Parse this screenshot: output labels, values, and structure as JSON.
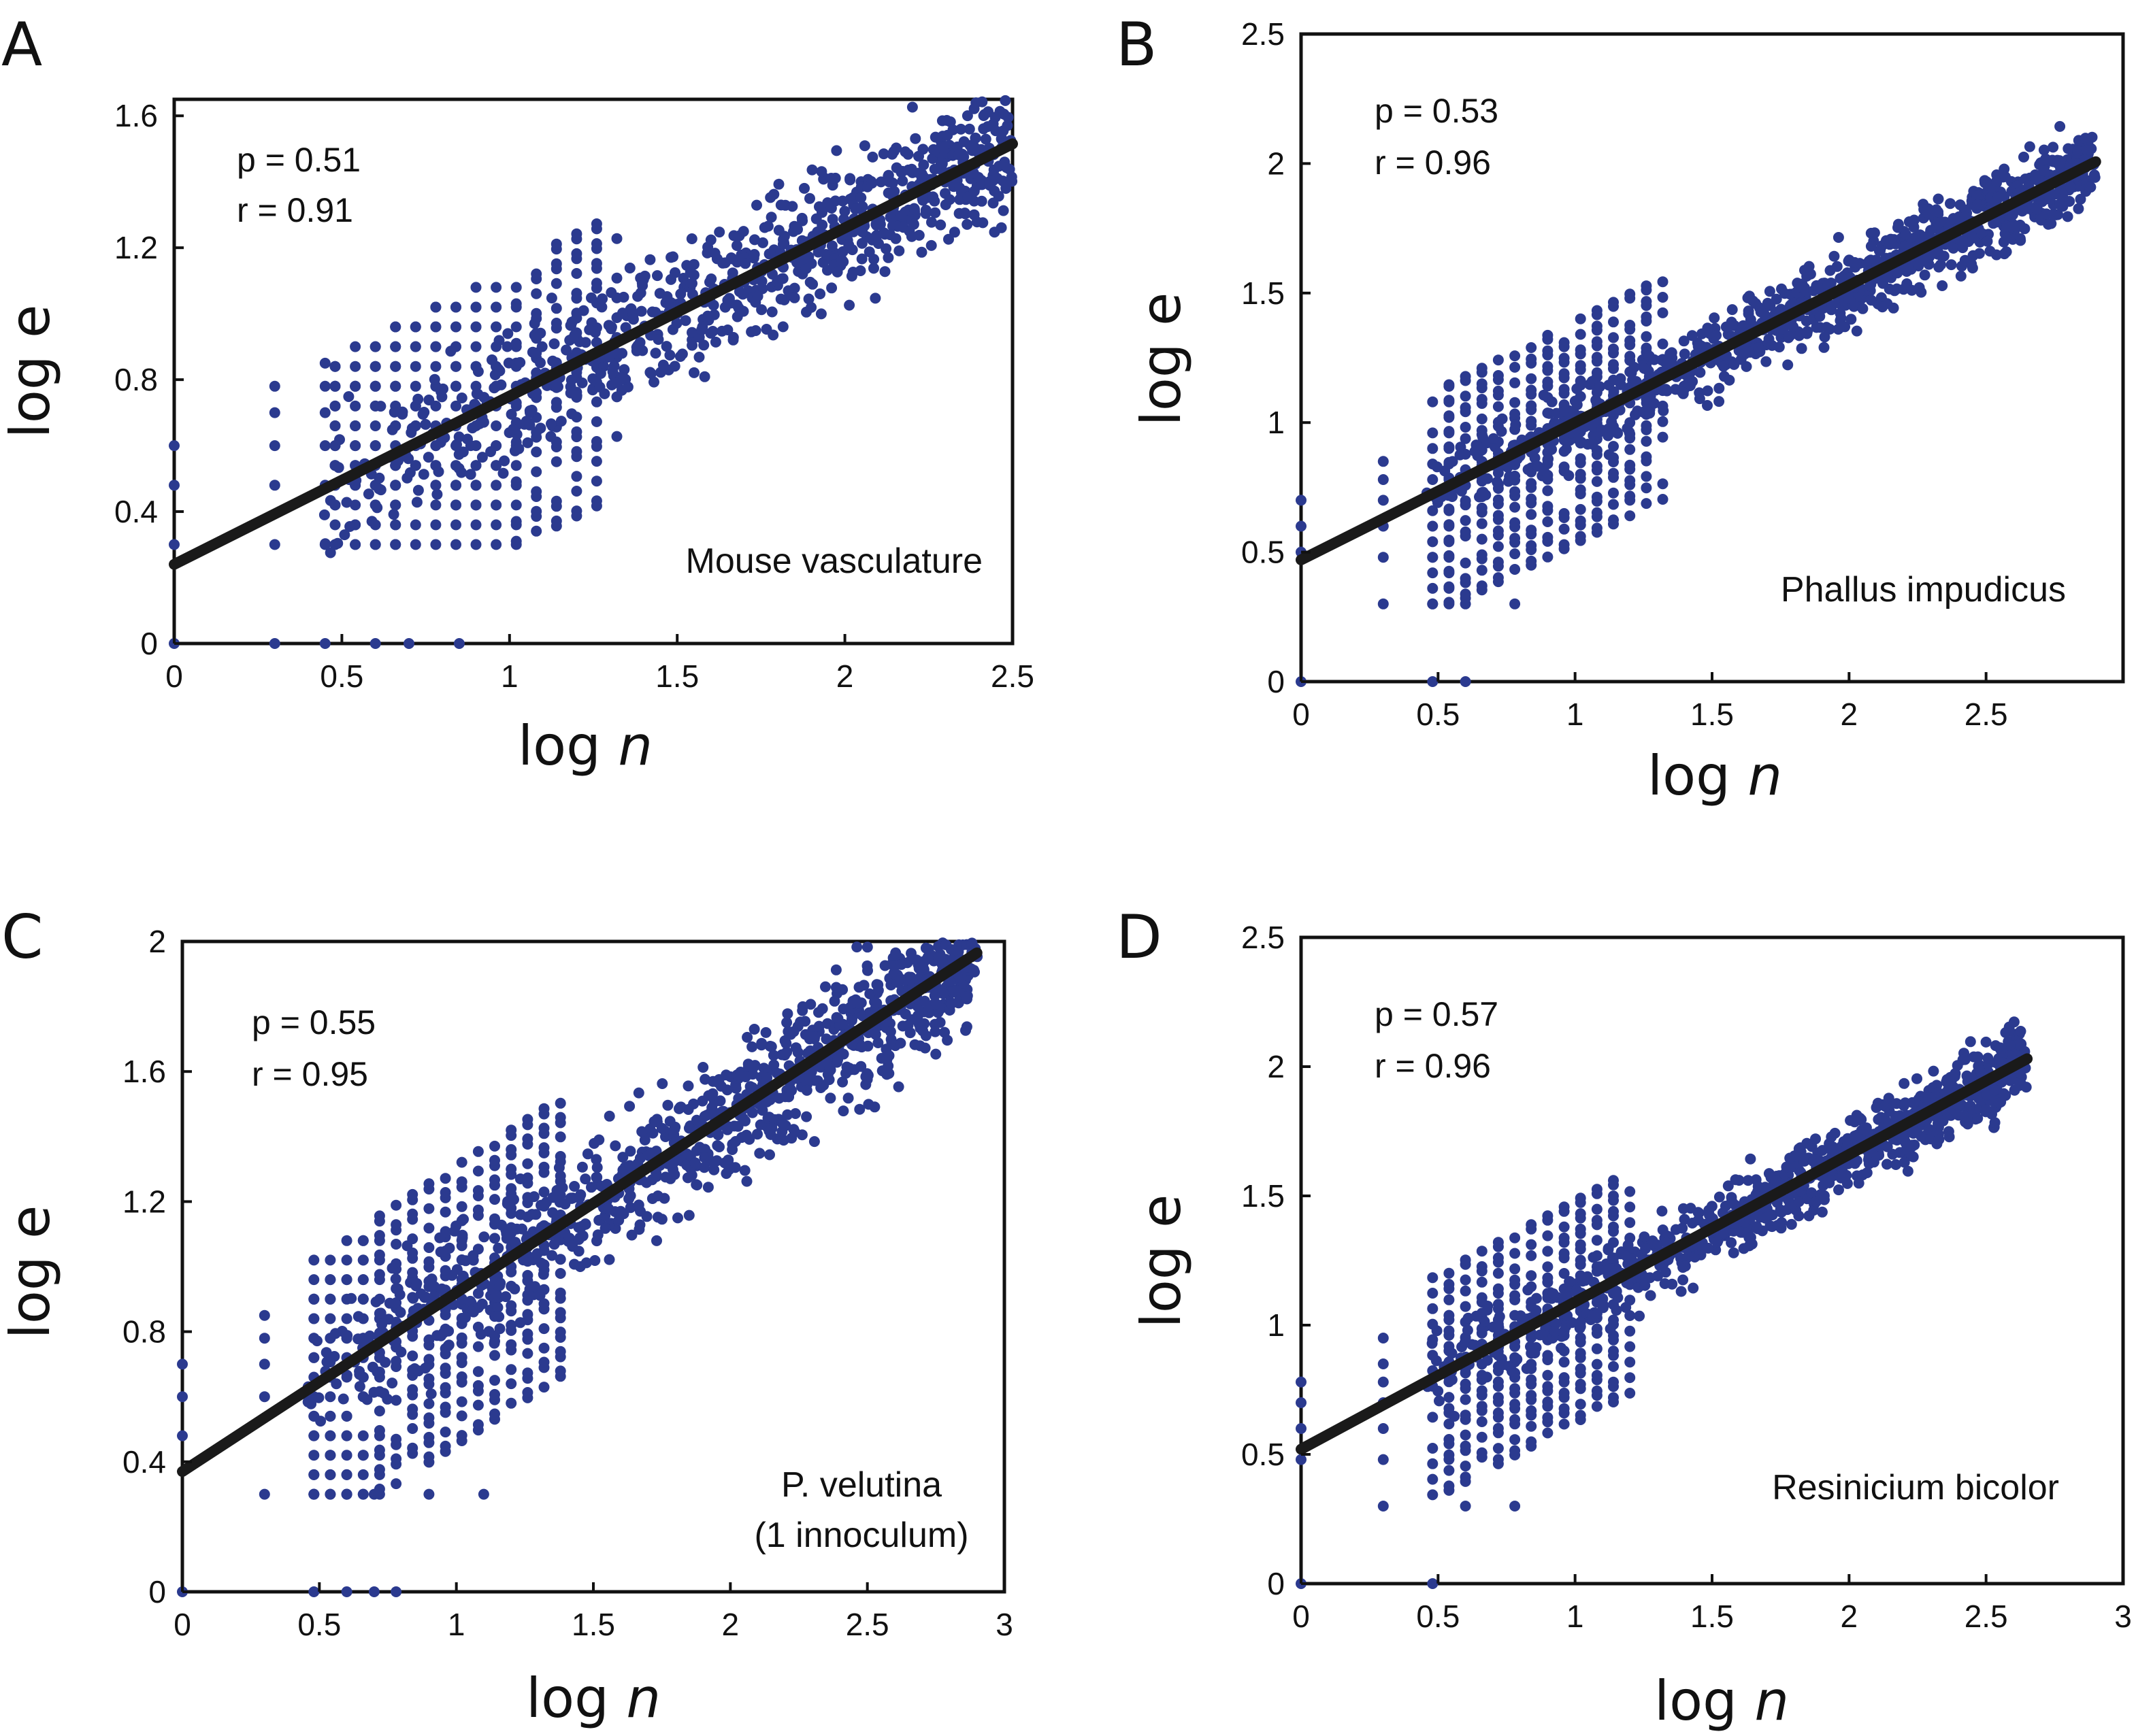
{
  "figure": {
    "colors": {
      "points": "#2b3a8f",
      "fit_line": "#1a1a1a",
      "axes": "#111111"
    }
  },
  "chart_data": [
    {
      "panel": "A",
      "type": "scatter",
      "title": "",
      "xlabel_main": "log ",
      "xlabel_var": "n",
      "ylabel": "log e",
      "xlim": [
        0,
        2.5
      ],
      "ylim": [
        0,
        1.65
      ],
      "xticks": [
        0,
        0.5,
        1,
        1.5,
        2,
        2.5
      ],
      "xtick_labels": [
        "0",
        "0.5",
        "1",
        "1.5",
        "2",
        "2.5"
      ],
      "yticks": [
        0,
        0.4,
        0.8,
        1.2,
        1.6
      ],
      "ytick_labels": [
        "0",
        "0.4",
        "0.8",
        "1.2",
        "1.6"
      ],
      "annotation_p": "p = 0.51",
      "annotation_r": "r =  0.91",
      "name_lines": [
        "Mouse vasculature"
      ],
      "fit": {
        "slope": 0.51,
        "intercept": 0.24,
        "x_end": 2.5
      },
      "grid_points": [
        [
          0,
          0
        ],
        [
          0,
          0.3
        ],
        [
          0,
          0.48
        ],
        [
          0,
          0.6
        ],
        [
          0.3,
          0
        ],
        [
          0.3,
          0.3
        ],
        [
          0.3,
          0.48
        ],
        [
          0.3,
          0.6
        ],
        [
          0.3,
          0.7
        ],
        [
          0.3,
          0.78
        ],
        [
          0.45,
          0
        ],
        [
          0.45,
          0.3
        ],
        [
          0.45,
          0.48
        ],
        [
          0.45,
          0.6
        ],
        [
          0.45,
          0.7
        ],
        [
          0.45,
          0.78
        ],
        [
          0.45,
          0.85
        ],
        [
          0.6,
          0
        ],
        [
          0.7,
          0
        ],
        [
          0.85,
          0
        ]
      ],
      "cloud": {
        "x_min": 0.45,
        "x_max": 2.5,
        "grid_x_max": 1.3,
        "spread": 0.2
      }
    },
    {
      "panel": "B",
      "type": "scatter",
      "title": "",
      "xlabel_main": "log ",
      "xlabel_var": "n",
      "ylabel": "log e",
      "xlim": [
        0,
        3
      ],
      "ylim": [
        0,
        2.5
      ],
      "xticks": [
        0,
        0.5,
        1,
        1.5,
        2,
        2.5
      ],
      "xtick_labels": [
        "0",
        "0.5",
        "1",
        "1.5",
        "2",
        "2.5"
      ],
      "yticks": [
        0,
        0.5,
        1,
        1.5,
        2,
        2.5
      ],
      "ytick_labels": [
        "0",
        "0.5",
        "1",
        "1.5",
        "2",
        "2.5"
      ],
      "annotation_p": "p = 0.53",
      "annotation_r": "r =  0.96",
      "name_lines": [
        "Phallus impudicus"
      ],
      "fit": {
        "slope": 0.53,
        "intercept": 0.47,
        "x_end": 2.9
      },
      "grid_points": [
        [
          0,
          0
        ],
        [
          0,
          0.5
        ],
        [
          0,
          0.6
        ],
        [
          0,
          0.7
        ],
        [
          0.3,
          0.3
        ],
        [
          0.3,
          0.48
        ],
        [
          0.3,
          0.6
        ],
        [
          0.3,
          0.7
        ],
        [
          0.3,
          0.78
        ],
        [
          0.3,
          0.85
        ],
        [
          0.48,
          0
        ],
        [
          0.48,
          0.3
        ],
        [
          0.48,
          0.48
        ],
        [
          0.6,
          0
        ],
        [
          0.6,
          0.3
        ],
        [
          0.78,
          0.3
        ]
      ],
      "cloud": {
        "x_min": 0.48,
        "x_max": 2.9,
        "grid_x_max": 1.3,
        "spread": 0.15
      }
    },
    {
      "panel": "C",
      "type": "scatter",
      "title": "",
      "xlabel_main": "log ",
      "xlabel_var": "n",
      "ylabel": "log e",
      "xlim": [
        0,
        3
      ],
      "ylim": [
        0,
        2
      ],
      "xticks": [
        0,
        0.5,
        1,
        1.5,
        2,
        2.5,
        3
      ],
      "xtick_labels": [
        "0",
        "0.5",
        "1",
        "1.5",
        "2",
        "2.5",
        "3"
      ],
      "yticks": [
        0,
        0.4,
        0.8,
        1.2,
        1.6,
        2
      ],
      "ytick_labels": [
        "0",
        "0.4",
        "0.8",
        "1.2",
        "1.6",
        "2"
      ],
      "annotation_p": "p = 0.55",
      "annotation_r": "r =  0.95",
      "name_lines": [
        "P. velutina",
        "(1 innoculum)"
      ],
      "fit": {
        "slope": 0.55,
        "intercept": 0.37,
        "x_end": 2.9
      },
      "grid_points": [
        [
          0,
          0
        ],
        [
          0,
          0.48
        ],
        [
          0,
          0.6
        ],
        [
          0,
          0.7
        ],
        [
          0.3,
          0.3
        ],
        [
          0.3,
          0.6
        ],
        [
          0.3,
          0.7
        ],
        [
          0.3,
          0.78
        ],
        [
          0.3,
          0.85
        ],
        [
          0.48,
          0
        ],
        [
          0.48,
          0.3
        ],
        [
          0.6,
          0
        ],
        [
          0.6,
          0.3
        ],
        [
          0.7,
          0
        ],
        [
          0.7,
          0.3
        ],
        [
          0.78,
          0
        ],
        [
          0.9,
          0.3
        ],
        [
          1.1,
          0.3
        ]
      ],
      "cloud": {
        "x_min": 0.45,
        "x_max": 2.9,
        "grid_x_max": 1.4,
        "spread": 0.2
      }
    },
    {
      "panel": "D",
      "type": "scatter",
      "title": "",
      "xlabel_main": "log ",
      "xlabel_var": "n",
      "ylabel": "log e",
      "xlim": [
        0,
        3
      ],
      "ylim": [
        0,
        2.5
      ],
      "xticks": [
        0,
        0.5,
        1,
        1.5,
        2,
        2.5,
        3
      ],
      "xtick_labels": [
        "0",
        "0.5",
        "1",
        "1.5",
        "2",
        "2.5",
        "3"
      ],
      "yticks": [
        0,
        0.5,
        1,
        1.5,
        2,
        2.5
      ],
      "ytick_labels": [
        "0",
        "0.5",
        "1",
        "1.5",
        "2",
        "2.5"
      ],
      "annotation_p": "p = 0.57",
      "annotation_r": "r =  0.96",
      "name_lines": [
        "Resinicium bicolor"
      ],
      "fit": {
        "slope": 0.57,
        "intercept": 0.52,
        "x_end": 2.65
      },
      "grid_points": [
        [
          0,
          0
        ],
        [
          0,
          0.48
        ],
        [
          0,
          0.6
        ],
        [
          0,
          0.7
        ],
        [
          0,
          0.78
        ],
        [
          0.3,
          0.3
        ],
        [
          0.3,
          0.48
        ],
        [
          0.3,
          0.6
        ],
        [
          0.3,
          0.7
        ],
        [
          0.3,
          0.78
        ],
        [
          0.3,
          0.85
        ],
        [
          0.3,
          0.95
        ],
        [
          0.48,
          0
        ],
        [
          0.6,
          0.3
        ],
        [
          0.78,
          0.3
        ]
      ],
      "cloud": {
        "x_min": 0.48,
        "x_max": 2.65,
        "grid_x_max": 1.2,
        "spread": 0.15
      }
    }
  ]
}
